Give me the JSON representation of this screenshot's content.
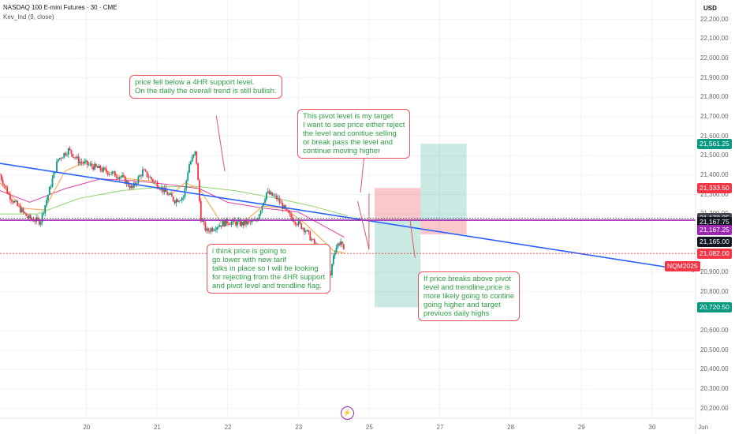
{
  "header": {
    "title": "NASDAQ 100 E-mini Futures · 30 · CME",
    "indicator": "Kev_Ind  (9, close)"
  },
  "currency": "USD",
  "annotations": {
    "support": "price fell below a 4HR support level.\nOn the daily the overall trend is still bullish.",
    "pivot": "This pivot level is my target\nI want to see price either reject\nthe level and conitiue selling\nor break pass the level and\ncontinue moving higher",
    "lower": "i think price is going to\ngo lower with new tarif\ntalks in place so I will be looking\nfor rejecting from the 4HR support\nand pivot level and trendline flag.",
    "breakout": "If price breaks above pivot\nlevel and trendline,price is\nmore likely going to contine\ngoing higher and target\npreviuos daily highs"
  },
  "price_tags": [
    {
      "label": "21,561.25",
      "color": "#089981",
      "value": 21561.25
    },
    {
      "label": "21,333.50",
      "color": "#f23645",
      "value": 21333.5
    },
    {
      "label": "21,178.25",
      "color": "#434651",
      "value": 21180
    },
    {
      "label": "21,167.75",
      "color": "#131722",
      "value": 21160
    },
    {
      "label": "21,167.25",
      "color": "#9c27b0",
      "value": 21118
    },
    {
      "label": "21,165.00",
      "color": "#131722",
      "value": 21057
    },
    {
      "label": "21,082.00",
      "color": "#f23645",
      "value": 20997
    },
    {
      "label": "20,720.50",
      "color": "#089981",
      "value": 20720.5
    }
  ],
  "symbol_tag": "NQM2025",
  "bolt_icon": "⚡",
  "chart_data": {
    "type": "candlestick",
    "y_ticks": [
      "22,200.00",
      "22,100.00",
      "22,000.00",
      "21,900.00",
      "21,800.00",
      "21,700.00",
      "21,600.00",
      "21,500.00",
      "21,400.00",
      "21,300.00",
      "21,200.00",
      "20,900.00",
      "20,800.00",
      "20,600.00",
      "20,500.00",
      "20,400.00",
      "20,300.00",
      "20,200.00"
    ],
    "y_tick_values": [
      22200,
      22100,
      22000,
      21900,
      21800,
      21700,
      21600,
      21500,
      21400,
      21300,
      21200,
      20900,
      20800,
      20600,
      20500,
      20400,
      20300,
      20200
    ],
    "x_ticks": [
      "20",
      "21",
      "22",
      "23",
      "25",
      "27",
      "28",
      "29",
      "30",
      "Jun"
    ],
    "x_tick_positions": [
      19.5,
      20.5,
      21.5,
      22.5,
      23.5,
      24.5,
      25.5,
      26.5,
      27.5,
      28.2
    ],
    "ylim": [
      20150,
      22300
    ],
    "xlim": [
      18.28,
      28.12
    ],
    "colors": {
      "up": "#089981",
      "down": "#f23645",
      "trendline": "#2962ff",
      "pivot": "#9c27b0"
    },
    "trendline": {
      "x": [
        18.28,
        28.1
      ],
      "y": [
        21460,
        20905
      ]
    },
    "pivot_level": 21168,
    "dotted_level": 21178,
    "last_price_level": 20997,
    "positions": [
      {
        "type": "short",
        "x0": 23.58,
        "x1": 24.23,
        "entry": 21168,
        "stop": 21333.5,
        "target": 20720.5
      },
      {
        "type": "long",
        "x0": 24.23,
        "x1": 24.88,
        "entry": 21168,
        "stop": 21095,
        "target": 21561.25
      }
    ],
    "price_path": {
      "x": [
        18.28,
        18.4,
        18.55,
        18.68,
        18.85,
        19.0,
        19.1,
        19.25,
        19.4,
        19.55,
        19.7,
        19.85,
        20.0,
        20.15,
        20.3,
        20.45,
        20.6,
        20.75,
        20.88,
        20.95,
        21.05,
        21.12,
        21.2,
        21.35,
        21.5,
        21.7,
        21.9,
        22.05,
        22.2,
        22.35,
        22.5,
        22.6,
        22.7,
        22.83,
        22.9,
        22.95,
        23.0,
        23.05,
        23.1,
        23.15
      ],
      "y": [
        21400,
        21300,
        21230,
        21180,
        21160,
        21350,
        21480,
        21530,
        21470,
        21450,
        21430,
        21410,
        21390,
        21330,
        21420,
        21370,
        21320,
        21270,
        21290,
        21450,
        21520,
        21180,
        21110,
        21140,
        21160,
        21150,
        21160,
        21310,
        21280,
        21200,
        21150,
        21120,
        21060,
        20980,
        20930,
        20870,
        21000,
        21040,
        21060,
        20990
      ]
    },
    "ma_fast": {
      "x": [
        18.28,
        18.6,
        18.9,
        19.2,
        19.5,
        19.8,
        20.1,
        20.4,
        20.7,
        20.9,
        21.1,
        21.4,
        21.7,
        22.0,
        22.3,
        22.6,
        22.8,
        23.0,
        23.15
      ],
      "y": [
        21360,
        21230,
        21220,
        21420,
        21470,
        21420,
        21380,
        21370,
        21300,
        21360,
        21330,
        21160,
        21150,
        21240,
        21230,
        21150,
        21080,
        21010,
        21000
      ]
    },
    "ma_slow": {
      "x": [
        18.28,
        18.7,
        19.2,
        19.7,
        20.2,
        20.7,
        21.1,
        21.5,
        22.0,
        22.5,
        22.8,
        23.15
      ],
      "y": [
        21320,
        21260,
        21330,
        21380,
        21370,
        21350,
        21330,
        21260,
        21230,
        21210,
        21150,
        21080
      ]
    },
    "ma_long": {
      "x": [
        18.28,
        18.8,
        19.4,
        20.0,
        20.6,
        21.1,
        21.6,
        22.2,
        22.7,
        23.0,
        23.2
      ],
      "y": [
        21200,
        21200,
        21280,
        21320,
        21340,
        21340,
        21320,
        21280,
        21240,
        21210,
        21190
      ]
    },
    "pointers": [
      {
        "from": [
          21.34,
          21705
        ],
        "to": [
          21.46,
          21420
        ]
      },
      {
        "from": [
          23.43,
          21492
        ],
        "to": [
          23.38,
          21310
        ]
      },
      {
        "from": [
          23.5,
          21020
        ],
        "to": [
          23.34,
          21265
        ]
      },
      {
        "from": [
          23.5,
          21015
        ],
        "to": [
          23.5,
          21305
        ]
      },
      {
        "from": [
          24.15,
          20975
        ],
        "to": [
          24.08,
          21173
        ]
      }
    ]
  }
}
